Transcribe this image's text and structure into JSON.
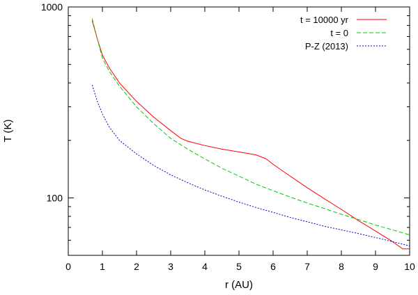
{
  "chart_data": {
    "type": "line",
    "title": "",
    "xlabel": "r (AU)",
    "ylabel": "T (K)",
    "xlim": [
      0,
      10
    ],
    "ylim": [
      50,
      1000
    ],
    "yscale": "log",
    "grid": false,
    "legend_position": "top-right",
    "xticks": [
      "0",
      "1",
      "2",
      "3",
      "4",
      "5",
      "6",
      "7",
      "8",
      "9",
      "10"
    ],
    "yticks": [
      {
        "value": 100,
        "label": "100"
      },
      {
        "value": 1000,
        "label": "1000"
      }
    ],
    "series": [
      {
        "name": "t = 10000 yr",
        "color": "#ff0000",
        "dash": "solid",
        "x": [
          0.7,
          0.85,
          1.0,
          1.2,
          1.5,
          2.0,
          2.5,
          3.0,
          3.3,
          3.5,
          4.0,
          4.5,
          5.0,
          5.5,
          5.8,
          6.0,
          6.5,
          7.0,
          7.5,
          8.0,
          8.5,
          9.0,
          9.5,
          9.8,
          10.0
        ],
        "y": [
          850,
          680,
          560,
          480,
          400,
          320,
          265,
          225,
          205,
          198,
          188,
          180,
          174,
          168,
          160,
          150,
          130,
          113,
          99,
          87,
          76,
          67,
          59,
          54,
          54
        ]
      },
      {
        "name": "t = 0",
        "color": "#00cc00",
        "dash": "dashed",
        "x": [
          0.7,
          0.85,
          1.0,
          1.2,
          1.5,
          2.0,
          2.5,
          3.0,
          3.5,
          4.0,
          4.5,
          5.0,
          5.5,
          6.0,
          6.5,
          7.0,
          7.5,
          8.0,
          8.5,
          9.0,
          9.5,
          10.0
        ],
        "y": [
          870,
          680,
          540,
          460,
          385,
          300,
          245,
          205,
          180,
          160,
          143,
          130,
          118,
          109,
          101,
          94,
          88,
          82,
          77,
          72,
          68,
          64
        ]
      },
      {
        "name": "P-Z (2013)",
        "color": "#0000cc",
        "dash": "dotted",
        "x": [
          0.7,
          0.85,
          1.0,
          1.2,
          1.5,
          2.0,
          2.5,
          3.0,
          3.5,
          4.0,
          4.5,
          5.0,
          5.5,
          6.0,
          6.5,
          7.0,
          7.5,
          8.0,
          8.5,
          9.0,
          9.5,
          10.0
        ],
        "y": [
          390,
          320,
          275,
          235,
          200,
          170,
          148,
          132,
          120,
          110,
          102,
          95,
          89,
          84,
          79,
          75,
          71,
          68,
          65,
          62,
          59,
          56
        ]
      }
    ]
  }
}
